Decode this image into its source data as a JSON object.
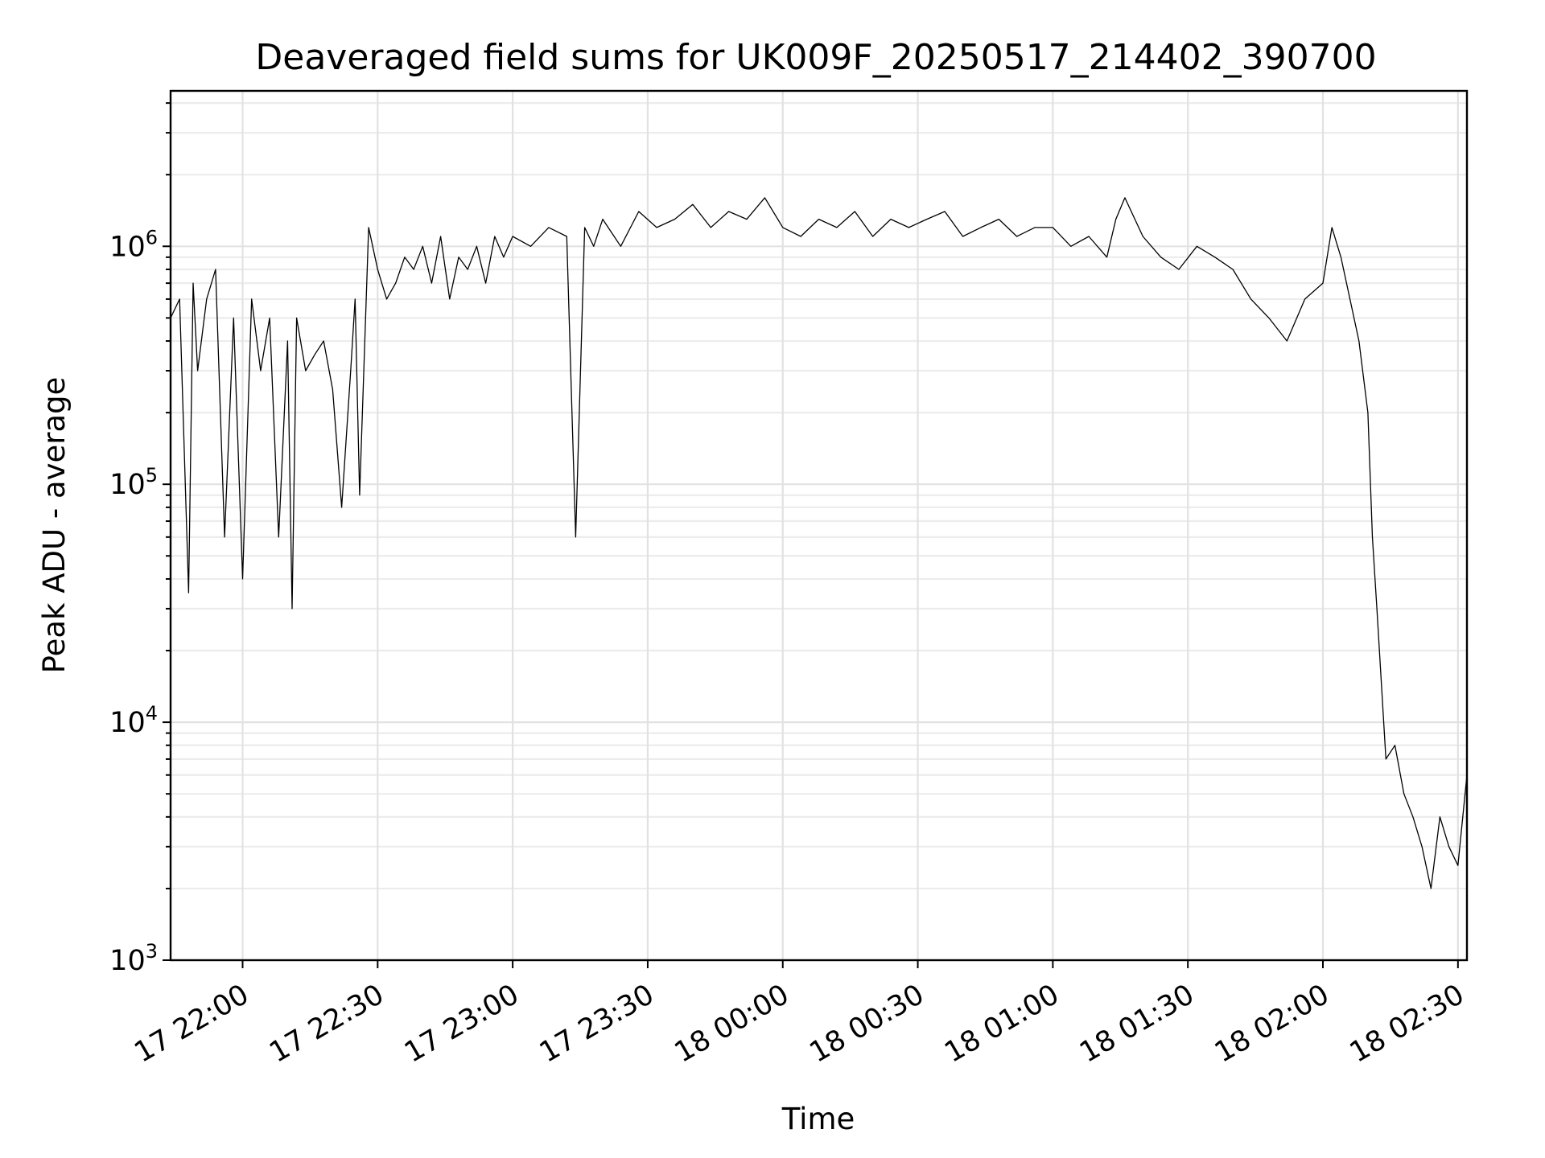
{
  "chart_data": {
    "type": "line",
    "title": "Deaveraged field sums for UK009F_20250517_214402_390700",
    "xlabel": "Time",
    "ylabel": "Peak ADU - average",
    "yscale": "log",
    "ylim": [
      1000,
      4500000
    ],
    "xlim": [
      "17 21:44",
      "18 02:32"
    ],
    "grid": true,
    "legend": "none",
    "line_color": "#000000",
    "x_ticks": [
      "17 22:00",
      "17 22:30",
      "17 23:00",
      "17 23:30",
      "18 00:00",
      "18 00:30",
      "18 01:00",
      "18 01:30",
      "18 02:00",
      "18 02:30"
    ],
    "y_ticks": [
      {
        "value": 1000,
        "base": "10",
        "exp": "3"
      },
      {
        "value": 10000,
        "base": "10",
        "exp": "4"
      },
      {
        "value": 100000,
        "base": "10",
        "exp": "5"
      },
      {
        "value": 1000000,
        "base": "10",
        "exp": "6"
      }
    ],
    "series": [
      {
        "x": [
          "17 21:44",
          "17 21:46",
          "17 21:48",
          "17 21:49",
          "17 21:50",
          "17 21:52",
          "17 21:54",
          "17 21:56",
          "17 21:58",
          "17 22:00",
          "17 22:02",
          "17 22:04",
          "17 22:06",
          "17 22:08",
          "17 22:10",
          "17 22:11",
          "17 22:12",
          "17 22:14",
          "17 22:16",
          "17 22:18",
          "17 22:20",
          "17 22:22",
          "17 22:24",
          "17 22:25",
          "17 22:26",
          "17 22:28",
          "17 22:30",
          "17 22:32",
          "17 22:34",
          "17 22:36",
          "17 22:38",
          "17 22:40",
          "17 22:42",
          "17 22:44",
          "17 22:46",
          "17 22:48",
          "17 22:50",
          "17 22:52",
          "17 22:54",
          "17 22:56",
          "17 22:58",
          "17 23:00",
          "17 23:04",
          "17 23:08",
          "17 23:12",
          "17 23:14",
          "17 23:16",
          "17 23:18",
          "17 23:20",
          "17 23:24",
          "17 23:28",
          "17 23:32",
          "17 23:36",
          "17 23:40",
          "17 23:44",
          "17 23:48",
          "17 23:52",
          "17 23:56",
          "18 00:00",
          "18 00:04",
          "18 00:08",
          "18 00:12",
          "18 00:16",
          "18 00:20",
          "18 00:24",
          "18 00:28",
          "18 00:32",
          "18 00:36",
          "18 00:40",
          "18 00:44",
          "18 00:48",
          "18 00:52",
          "18 00:56",
          "18 01:00",
          "18 01:04",
          "18 01:08",
          "18 01:12",
          "18 01:14",
          "18 01:16",
          "18 01:20",
          "18 01:24",
          "18 01:28",
          "18 01:32",
          "18 01:36",
          "18 01:40",
          "18 01:44",
          "18 01:48",
          "18 01:52",
          "18 01:56",
          "18 02:00",
          "18 02:02",
          "18 02:04",
          "18 02:06",
          "18 02:08",
          "18 02:10",
          "18 02:11",
          "18 02:12",
          "18 02:14",
          "18 02:16",
          "18 02:18",
          "18 02:20",
          "18 02:22",
          "18 02:24",
          "18 02:26",
          "18 02:28",
          "18 02:30",
          "18 02:32"
        ],
        "values": [
          500000,
          600000,
          35000,
          700000,
          300000,
          600000,
          800000,
          60000,
          500000,
          40000,
          600000,
          300000,
          500000,
          60000,
          400000,
          30000,
          500000,
          300000,
          350000,
          400000,
          250000,
          80000,
          300000,
          600000,
          90000,
          1200000,
          800000,
          600000,
          700000,
          900000,
          800000,
          1000000,
          700000,
          1100000,
          600000,
          900000,
          800000,
          1000000,
          700000,
          1100000,
          900000,
          1100000,
          1000000,
          1200000,
          1100000,
          60000,
          1200000,
          1000000,
          1300000,
          1000000,
          1400000,
          1200000,
          1300000,
          1500000,
          1200000,
          1400000,
          1300000,
          1600000,
          1200000,
          1100000,
          1300000,
          1200000,
          1400000,
          1100000,
          1300000,
          1200000,
          1300000,
          1400000,
          1100000,
          1200000,
          1300000,
          1100000,
          1200000,
          1200000,
          1000000,
          1100000,
          900000,
          1300000,
          1600000,
          1100000,
          900000,
          800000,
          1000000,
          900000,
          800000,
          600000,
          500000,
          400000,
          600000,
          700000,
          1200000,
          900000,
          600000,
          400000,
          200000,
          60000,
          30000,
          7000,
          8000,
          5000,
          4000,
          3000,
          2000,
          4000,
          3000,
          2500,
          6000
        ]
      }
    ]
  }
}
